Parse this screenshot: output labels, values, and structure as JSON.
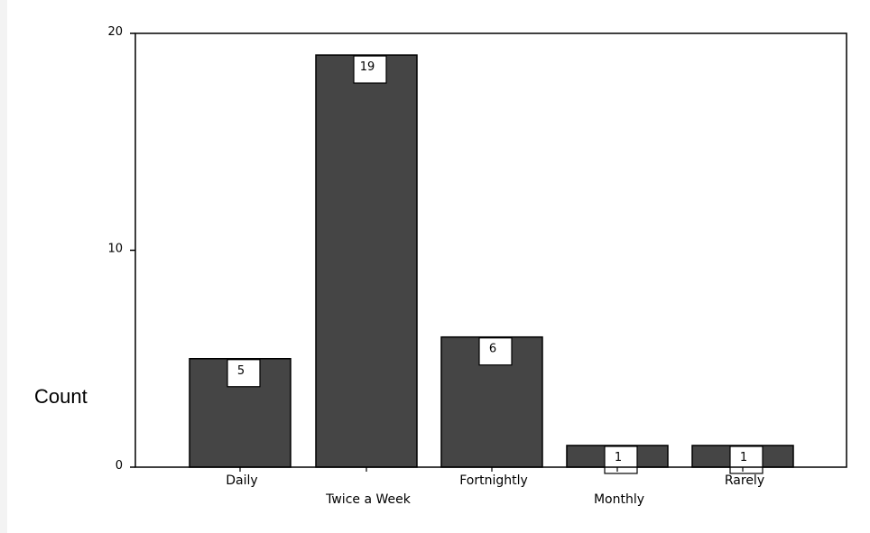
{
  "chart_data": {
    "type": "bar",
    "title": "",
    "xlabel": "",
    "ylabel": "Count",
    "categories": [
      "Daily",
      "Twice a Week",
      "Fortnightly",
      "Monthly",
      "Rarely"
    ],
    "values": [
      5,
      19,
      6,
      1,
      1
    ],
    "ylim": [
      0,
      20
    ],
    "yticks": [
      0,
      10,
      20
    ],
    "grid": false,
    "legend": "none",
    "colors": {
      "bar": "#454545",
      "bar_outline": "#000000",
      "label_box": "#ffffff",
      "background": "#ffffff"
    }
  }
}
